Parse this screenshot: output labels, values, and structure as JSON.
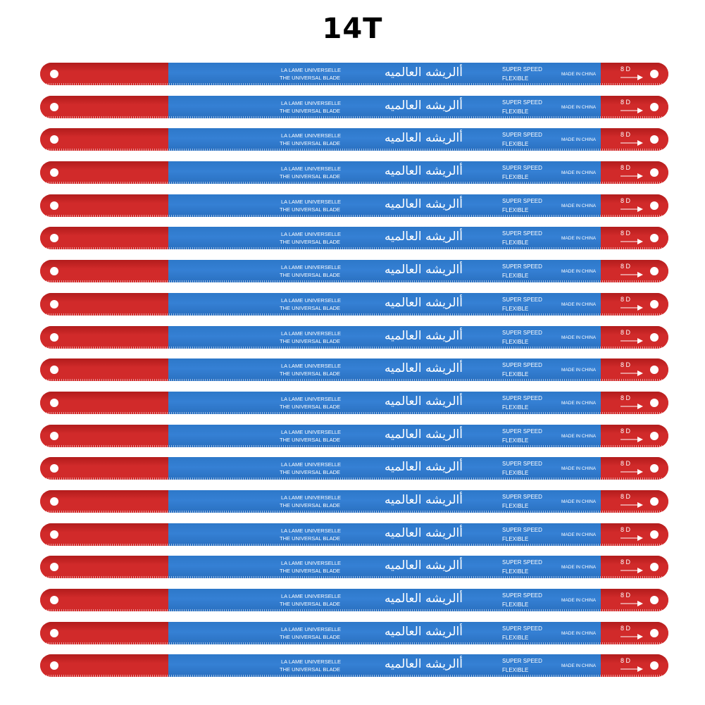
{
  "title": "14T",
  "colors": {
    "red": "#d12a2a",
    "red_dark": "#b21c1c",
    "blue": "#3580d4"
  },
  "blade": {
    "brand_line1": "LA LAME UNIVERSELLE",
    "brand_line2": "THE UNIVERSAL BLADE",
    "arabic": "أالريشه العالميه",
    "speed": "SUPER SPEED",
    "flexible": "FLEXIBLE",
    "origin": "MADE IN CHINA",
    "code": "8 D"
  },
  "blade_count": 19
}
